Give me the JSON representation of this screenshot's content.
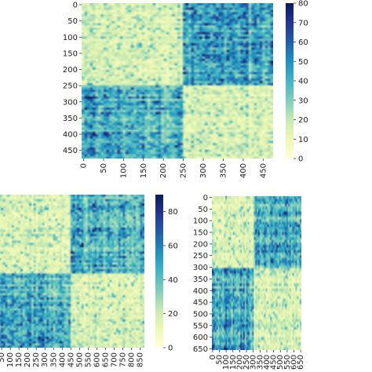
{
  "colormap": [
    "#ffffd9",
    "#edf8b1",
    "#c7e9b4",
    "#7fcdbb",
    "#41b6c4",
    "#1d91c0",
    "#225ea8",
    "#253494",
    "#081d58"
  ],
  "chart_data": [
    {
      "type": "heatmap",
      "n": 480,
      "blocks": [
        250
      ],
      "vmin": 0,
      "vmax": 80,
      "x_ticks": [
        0,
        50,
        100,
        150,
        200,
        250,
        300,
        350,
        400,
        450
      ],
      "y_ticks": [
        0,
        50,
        100,
        150,
        200,
        250,
        300,
        350,
        400,
        450
      ],
      "colorbar_ticks": [
        0,
        10,
        20,
        30,
        40,
        50,
        60,
        70,
        80
      ]
    },
    {
      "type": "heatmap",
      "n": 880,
      "blocks": [
        450
      ],
      "vmin": 0,
      "vmax": 90,
      "x_ticks": [
        0,
        50,
        100,
        150,
        200,
        250,
        300,
        350,
        400,
        450,
        500,
        550,
        600,
        650,
        700,
        750,
        800,
        850
      ],
      "y_ticks": [],
      "colorbar_ticks": [
        0,
        20,
        40,
        60,
        80
      ]
    },
    {
      "type": "heatmap",
      "n": 660,
      "blocks": [
        300
      ],
      "vmin": 0,
      "vmax": 90,
      "x_ticks": [
        0,
        50,
        100,
        150,
        200,
        250,
        300,
        350,
        400,
        450,
        500,
        550,
        600,
        650
      ],
      "y_ticks": [
        0,
        50,
        100,
        150,
        200,
        250,
        300,
        350,
        400,
        450,
        500,
        550,
        600,
        650
      ],
      "colorbar_ticks": []
    }
  ]
}
